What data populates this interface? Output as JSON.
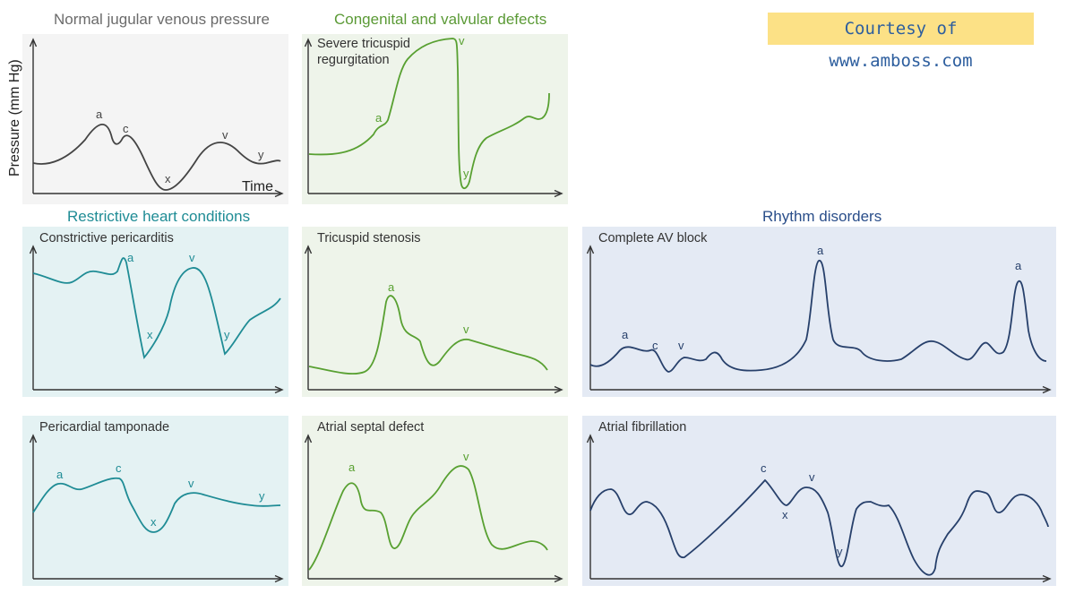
{
  "colors": {
    "gray": "#444444",
    "gray_bg": "#f4f4f4",
    "gray_title": "#6b6b6b",
    "green": "#58a031",
    "green_bg": "#eef4ea",
    "green_title": "#5b9a36",
    "teal": "#1f8c95",
    "teal_bg": "#e4f2f3",
    "teal_title": "#1f8c95",
    "navy": "#27406b",
    "navy_bg": "#e4eaf4",
    "navy_title": "#2a4e8a",
    "axis": "#333333"
  },
  "courtesy": "Courtesy of www.amboss.com",
  "sections": {
    "normal": "Normal jugular venous pressure",
    "congenital": "Congenital and valvular defects",
    "restrictive": "Restrictive heart conditions",
    "rhythm": "Rhythm disorders"
  },
  "axes": {
    "ylabel": "Pressure (mm Hg)",
    "xlabel": "Time"
  },
  "panels": {
    "normal": {
      "title": "",
      "wave_labels": [
        "a",
        "c",
        "x",
        "v",
        "y"
      ]
    },
    "tricuspid_regurgitation": {
      "title": "Severe tricuspid\nregurgitation",
      "wave_labels": [
        "a",
        "v",
        "y"
      ]
    },
    "constrictive_pericarditis": {
      "title": "Constrictive pericarditis",
      "wave_labels": [
        "a",
        "x",
        "v",
        "y"
      ]
    },
    "tricuspid_stenosis": {
      "title": "Tricuspid stenosis",
      "wave_labels": [
        "a",
        "v"
      ]
    },
    "complete_av_block": {
      "title": "Complete AV block",
      "wave_labels": [
        "a",
        "c",
        "v",
        "a",
        "a"
      ]
    },
    "pericardial_tamponade": {
      "title": "Pericardial tamponade",
      "wave_labels": [
        "a",
        "c",
        "x",
        "v",
        "y"
      ]
    },
    "atrial_septal_defect": {
      "title": "Atrial septal defect",
      "wave_labels": [
        "a",
        "v"
      ]
    },
    "atrial_fibrillation": {
      "title": "Atrial fibrillation",
      "wave_labels": [
        "c",
        "x",
        "v",
        "y"
      ]
    }
  }
}
